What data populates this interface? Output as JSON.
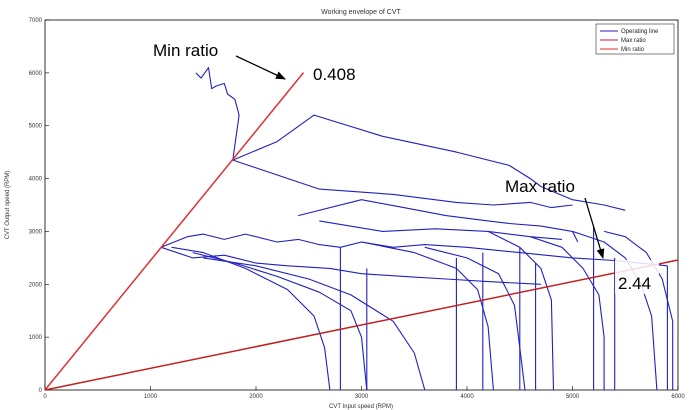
{
  "chart_data": {
    "type": "line",
    "title": "Working envelope of CVT",
    "xlabel": "CVT Input speed (RPM)",
    "ylabel": "CVT Output speed (RPM)",
    "xlim": [
      0,
      6000
    ],
    "ylim": [
      0,
      7000
    ],
    "xticks": [
      0,
      1000,
      2000,
      3000,
      4000,
      5000,
      6000
    ],
    "yticks": [
      0,
      1000,
      2000,
      3000,
      4000,
      5000,
      6000,
      7000
    ],
    "grid": false,
    "legend_position": "top-right",
    "legend": [
      {
        "label": "Operating line",
        "color": "#2020c0"
      },
      {
        "label": "Max ratio",
        "color": "#c02020"
      },
      {
        "label": "Min ratio",
        "color": "#e03030"
      }
    ],
    "series": [
      {
        "name": "Min ratio",
        "color": "#e03030",
        "x": [
          0,
          2450
        ],
        "y": [
          0,
          6005
        ]
      },
      {
        "name": "Max ratio",
        "color": "#c02020",
        "x": [
          0,
          6000
        ],
        "y": [
          0,
          2459
        ]
      },
      {
        "name": "Operating line",
        "color": "#2020c0",
        "segments": [
          [
            [
              1430,
              6000
            ],
            [
              1480,
              5900
            ],
            [
              1550,
              6100
            ],
            [
              1580,
              5700
            ],
            [
              1620,
              5750
            ],
            [
              1700,
              5800
            ],
            [
              1730,
              5600
            ],
            [
              1800,
              5500
            ],
            [
              1840,
              5200
            ],
            [
              1780,
              4350
            ],
            [
              2200,
              4700
            ],
            [
              2550,
              5200
            ],
            [
              3200,
              4800
            ],
            [
              3900,
              4500
            ],
            [
              4400,
              4250
            ],
            [
              4600,
              4000
            ],
            [
              4700,
              3850
            ],
            [
              5000,
              3600
            ],
            [
              5300,
              3500
            ],
            [
              5500,
              3400
            ]
          ],
          [
            [
              1780,
              4350
            ],
            [
              2600,
              3800
            ],
            [
              3300,
              3700
            ],
            [
              3900,
              3550
            ],
            [
              4250,
              3500
            ],
            [
              4600,
              3550
            ],
            [
              4800,
              3450
            ],
            [
              5000,
              3500
            ]
          ],
          [
            [
              2400,
              3300
            ],
            [
              3000,
              3600
            ],
            [
              3400,
              3450
            ],
            [
              3800,
              3300
            ],
            [
              4200,
              3200
            ],
            [
              4400,
              3150
            ],
            [
              4700,
              3100
            ],
            [
              5000,
              3000
            ],
            [
              5050,
              2800
            ]
          ],
          [
            [
              2600,
              3200
            ],
            [
              3200,
              3000
            ],
            [
              3700,
              3050
            ],
            [
              4200,
              3000
            ],
            [
              4600,
              2900
            ],
            [
              4900,
              2850
            ]
          ],
          [
            [
              1100,
              2700
            ],
            [
              1350,
              2900
            ],
            [
              1500,
              2950
            ],
            [
              1700,
              2850
            ],
            [
              1900,
              2950
            ],
            [
              2200,
              2800
            ],
            [
              2400,
              2850
            ],
            [
              2600,
              2750
            ],
            [
              2800,
              2700
            ],
            [
              3000,
              2800
            ],
            [
              3300,
              2700
            ],
            [
              3600,
              2750
            ],
            [
              4000,
              2700
            ],
            [
              4500,
              2600
            ],
            [
              5000,
              2500
            ],
            [
              5400,
              2450
            ],
            [
              5900,
              2350
            ]
          ],
          [
            [
              1100,
              2700
            ],
            [
              1400,
              2500
            ],
            [
              1700,
              2550
            ],
            [
              2000,
              2400
            ],
            [
              2300,
              2350
            ],
            [
              2700,
              2300
            ],
            [
              3000,
              2200
            ],
            [
              3400,
              2150
            ],
            [
              3800,
              2100
            ],
            [
              4200,
              2050
            ],
            [
              4700,
              2000
            ]
          ],
          [
            [
              1200,
              2700
            ],
            [
              1500,
              2600
            ],
            [
              1900,
              2300
            ],
            [
              2300,
              1900
            ],
            [
              2550,
              1400
            ],
            [
              2650,
              800
            ],
            [
              2700,
              0
            ]
          ],
          [
            [
              1400,
              2600
            ],
            [
              1800,
              2400
            ],
            [
              2200,
              2150
            ],
            [
              2600,
              1850
            ],
            [
              2900,
              1500
            ],
            [
              3000,
              1000
            ],
            [
              3050,
              0
            ]
          ],
          [
            [
              1500,
              2500
            ],
            [
              2000,
              2350
            ],
            [
              2500,
              2100
            ],
            [
              2900,
              1800
            ],
            [
              3300,
              1300
            ],
            [
              3500,
              700
            ],
            [
              3600,
              0
            ]
          ],
          [
            [
              3000,
              2800
            ],
            [
              3500,
              2600
            ],
            [
              3900,
              2300
            ],
            [
              4100,
              1900
            ],
            [
              4200,
              1200
            ],
            [
              4250,
              0
            ]
          ],
          [
            [
              3600,
              2700
            ],
            [
              4000,
              2500
            ],
            [
              4300,
              2200
            ],
            [
              4450,
              1600
            ],
            [
              4500,
              800
            ],
            [
              4550,
              0
            ]
          ],
          [
            [
              4200,
              3000
            ],
            [
              4500,
              2700
            ],
            [
              4700,
              2300
            ],
            [
              4800,
              1700
            ],
            [
              4820,
              0
            ]
          ],
          [
            [
              4600,
              2900
            ],
            [
              4900,
              2700
            ],
            [
              5100,
              2300
            ],
            [
              5250,
              1800
            ],
            [
              5300,
              1000
            ],
            [
              5300,
              0
            ]
          ],
          [
            [
              5000,
              3000
            ],
            [
              5300,
              2800
            ],
            [
              5500,
              2500
            ],
            [
              5650,
              2000
            ],
            [
              5750,
              1400
            ],
            [
              5800,
              0
            ]
          ],
          [
            [
              5300,
              3000
            ],
            [
              5500,
              2900
            ],
            [
              5700,
              2600
            ],
            [
              5850,
              2100
            ],
            [
              5950,
              1300
            ],
            [
              5950,
              0
            ]
          ],
          [
            [
              2800,
              2700
            ],
            [
              2800,
              0
            ]
          ],
          [
            [
              3050,
              2300
            ],
            [
              3050,
              0
            ]
          ],
          [
            [
              3900,
              2500
            ],
            [
              3900,
              0
            ]
          ],
          [
            [
              4150,
              2600
            ],
            [
              4150,
              0
            ]
          ],
          [
            [
              4500,
              2700
            ],
            [
              4500,
              0
            ]
          ],
          [
            [
              4650,
              2400
            ],
            [
              4650,
              0
            ]
          ],
          [
            [
              5200,
              3100
            ],
            [
              5200,
              0
            ]
          ],
          [
            [
              5400,
              2500
            ],
            [
              5400,
              0
            ]
          ],
          [
            [
              5900,
              2350
            ],
            [
              5900,
              0
            ]
          ]
        ]
      }
    ],
    "annotations": [
      {
        "text": "Min ratio",
        "points_to": "min-ratio-line"
      },
      {
        "text": "0.408",
        "labels": "min-ratio-line"
      },
      {
        "text": "Max ratio",
        "points_to": "max-ratio-line"
      },
      {
        "text": "2.44",
        "labels": "max-ratio-line"
      }
    ]
  }
}
